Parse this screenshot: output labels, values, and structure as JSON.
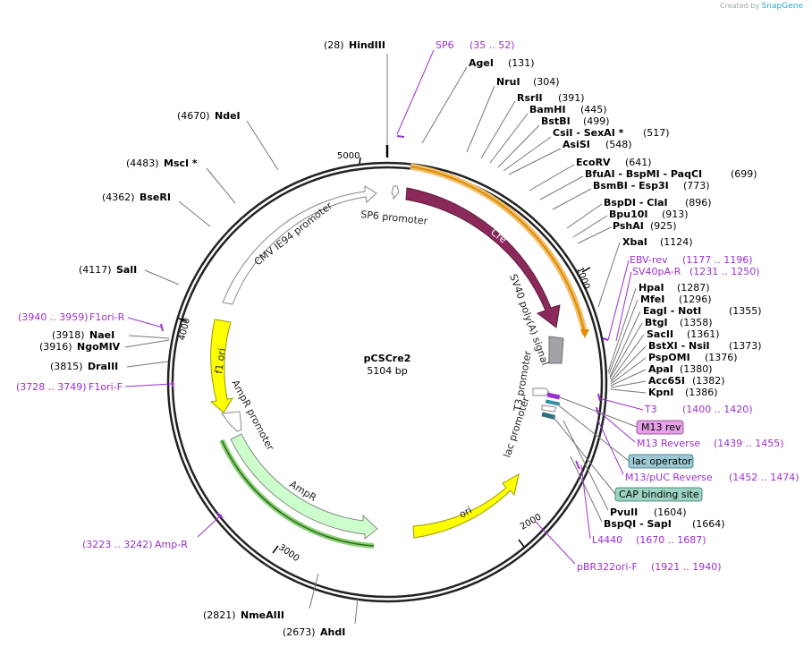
{
  "credit": {
    "prefix": "Created by",
    "brand": "SnapGene"
  },
  "plasmid": {
    "name": "pCSCre2",
    "length_label": "5104 bp",
    "length": 5104
  },
  "ticks": [
    "1000",
    "2000",
    "3000",
    "4000",
    "5000"
  ],
  "features": [
    {
      "id": "cmv",
      "label": "CMV IE94 promoter",
      "color": "#ffffff",
      "stroke": "#888888"
    },
    {
      "id": "sp6p",
      "label": "SP6 promoter",
      "color": "#ffffff",
      "stroke": "#888888"
    },
    {
      "id": "cre",
      "label": "Cre",
      "color": "#8b2a5a",
      "stroke": "#5c1a3c"
    },
    {
      "id": "sv40",
      "label": "SV40 poly(A) signal",
      "color": "#a0a4a8",
      "stroke": "#6c6f72"
    },
    {
      "id": "t3p",
      "label": "T3 promoter",
      "color": "#ffffff",
      "stroke": "#888888"
    },
    {
      "id": "lacp",
      "label": "lac promoter",
      "color": "#ffffff",
      "stroke": "#888888"
    },
    {
      "id": "ori",
      "label": "ori",
      "color": "#ffff00",
      "stroke": "#999900"
    },
    {
      "id": "ampr",
      "label": "AmpR",
      "color": "#ccffcc",
      "stroke": "#888888"
    },
    {
      "id": "amprp",
      "label": "AmpR promoter",
      "color": "#ffffff",
      "stroke": "#888888"
    },
    {
      "id": "f1ori",
      "label": "f1 ori",
      "color": "#ffff00",
      "stroke": "#999900"
    }
  ],
  "left_sites": [
    {
      "pos": "(28)",
      "name": "HindIII"
    },
    {
      "pos": "(4670)",
      "name": "NdeI"
    },
    {
      "pos": "(4483)",
      "name": "MscI *"
    },
    {
      "pos": "(4362)",
      "name": "BseRI"
    },
    {
      "pos": "(4117)",
      "name": "SalI"
    },
    {
      "pos": "(3918)",
      "name": "NaeI"
    },
    {
      "pos": "(3916)",
      "name": "NgoMIV"
    },
    {
      "pos": "(3815)",
      "name": "DraIII"
    },
    {
      "pos": "(2821)",
      "name": "NmeAIII"
    },
    {
      "pos": "(2673)",
      "name": "AhdI"
    }
  ],
  "right_sites": [
    {
      "name": "AgeI",
      "pos": "(131)"
    },
    {
      "name": "NruI",
      "pos": "(304)"
    },
    {
      "name": "RsrII",
      "pos": "(391)"
    },
    {
      "name": "BamHI",
      "pos": "(445)"
    },
    {
      "name": "BstBI",
      "pos": "(499)"
    },
    {
      "name": "CsiI  -  SexAI *",
      "pos": "(517)"
    },
    {
      "name": "AsiSI",
      "pos": "(548)"
    },
    {
      "name": "EcoRV",
      "pos": "(641)"
    },
    {
      "name": "BfuAI  -  BspMI  -  PaqCI",
      "pos": "(699)"
    },
    {
      "name": "BsmBI  -  Esp3I",
      "pos": "(773)"
    },
    {
      "name": "BspDI  -  ClaI",
      "pos": "(896)"
    },
    {
      "name": "Bpu10I",
      "pos": "(913)"
    },
    {
      "name": "PshAI",
      "pos": "(925)"
    },
    {
      "name": "XbaI",
      "pos": "(1124)"
    },
    {
      "name": "HpaI",
      "pos": "(1287)"
    },
    {
      "name": "MfeI",
      "pos": "(1296)"
    },
    {
      "name": "EagI  -  NotI",
      "pos": "(1355)"
    },
    {
      "name": "BtgI",
      "pos": "(1358)"
    },
    {
      "name": "SacII",
      "pos": "(1361)"
    },
    {
      "name": "BstXI  -  NsiI",
      "pos": "(1373)"
    },
    {
      "name": "PspOMI",
      "pos": "(1376)"
    },
    {
      "name": "ApaI",
      "pos": "(1380)"
    },
    {
      "name": "Acc65I",
      "pos": "(1382)"
    },
    {
      "name": "KpnI",
      "pos": "(1386)"
    },
    {
      "name": "PvuII",
      "pos": "(1604)"
    },
    {
      "name": "BspQI  -  SapI",
      "pos": "(1664)"
    }
  ],
  "primers": [
    {
      "name": "SP6",
      "range": "(35 .. 52)"
    },
    {
      "name": "EBV-rev",
      "range": "(1177 .. 1196)"
    },
    {
      "name": "SV40pA-R",
      "range": "(1231 .. 1250)"
    },
    {
      "name": "T3",
      "range": "(1400 .. 1420)"
    },
    {
      "name": "M13 Reverse",
      "range": "(1439 .. 1455)"
    },
    {
      "name": "M13/pUC Reverse",
      "range": "(1452 .. 1474)"
    },
    {
      "name": "L4440",
      "range": "(1670 .. 1687)"
    },
    {
      "name": "pBR322ori-F",
      "range": "(1921 .. 1940)"
    },
    {
      "name": "F1ori-R",
      "range": "(3940 .. 3959)"
    },
    {
      "name": "F1ori-F",
      "range": "(3728 .. 3749)"
    },
    {
      "name": "Amp-R",
      "range": "(3223 .. 3242)"
    }
  ],
  "boxed_features": [
    {
      "label": "M13 rev",
      "color": "#e6a0e6"
    },
    {
      "label": "lac operator",
      "color": "#9cc9d4"
    },
    {
      "label": "CAP binding site",
      "color": "#9cd4c4"
    }
  ]
}
